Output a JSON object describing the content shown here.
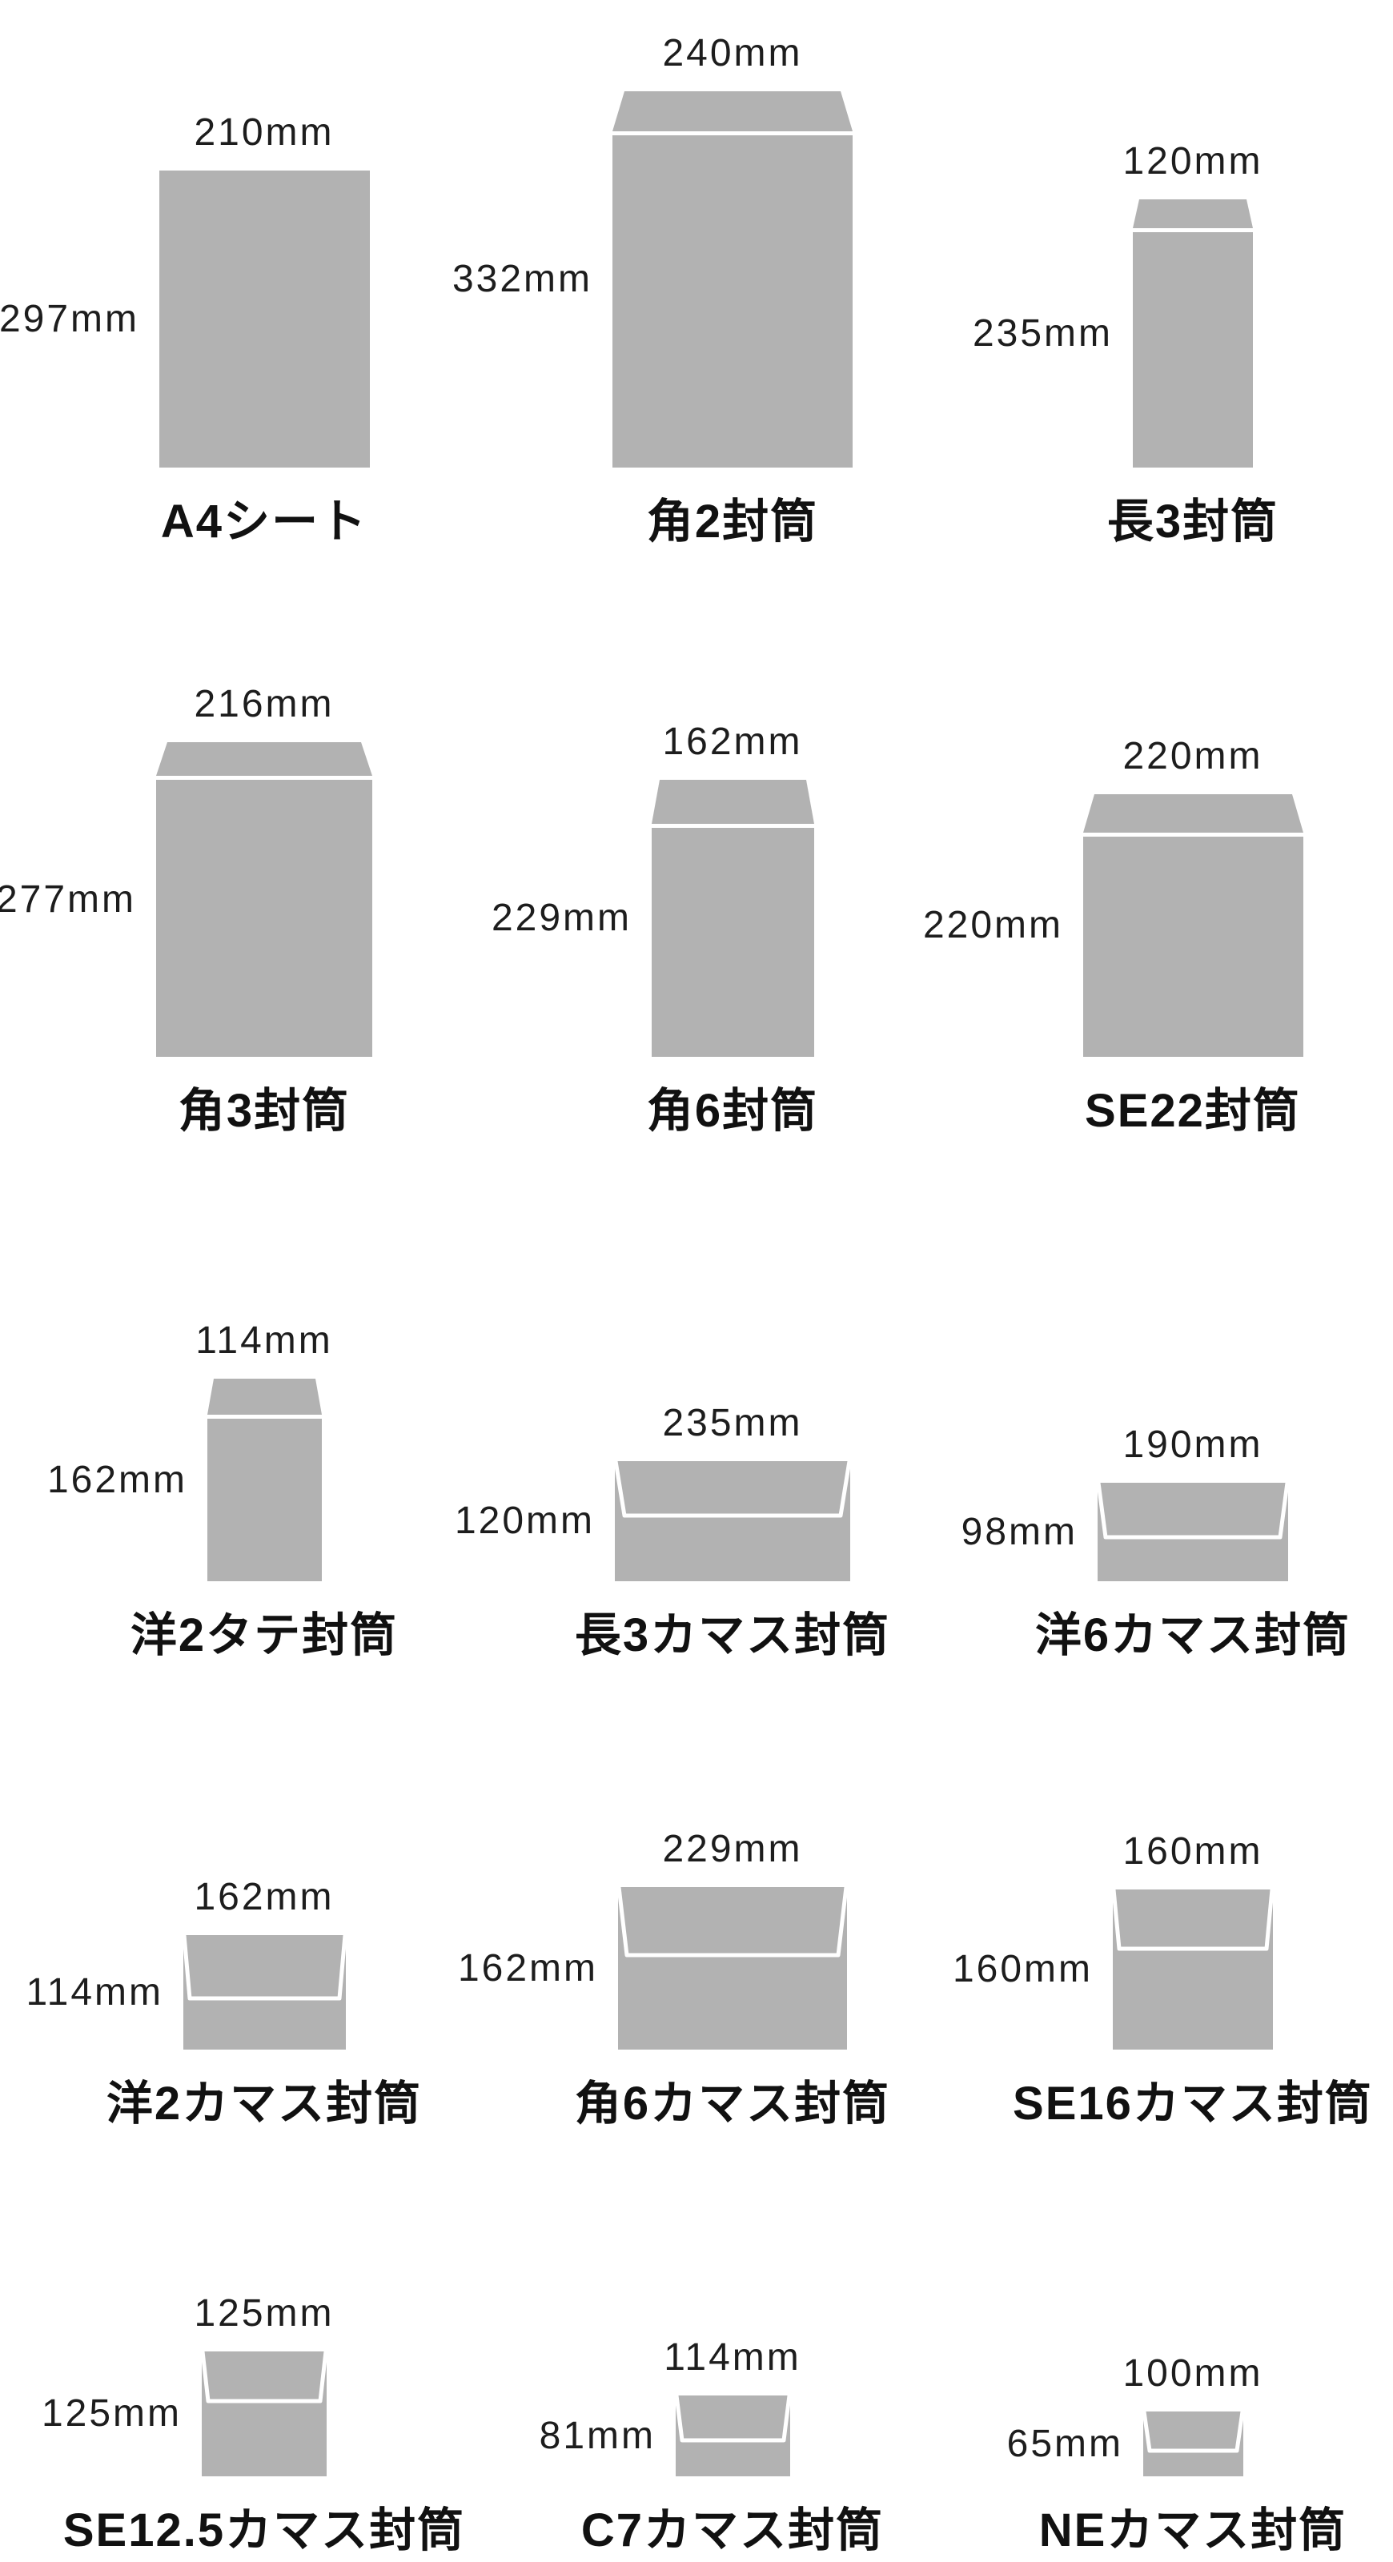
{
  "diagram": {
    "description": "envelope-and-sheet-size-reference",
    "unit_suffix": "mm"
  },
  "colors": {
    "background": "#ffffff",
    "shape_fill": "#b2b2b2",
    "separator_line": "#ffffff",
    "dimension_text": "#1d1d1d",
    "name_text": "#111111"
  },
  "items": [
    {
      "name": "A4シート",
      "width_label": "210mm",
      "height_label": "297mm",
      "width_mm": 210,
      "height_mm": 297,
      "shape": "sheet"
    },
    {
      "name": "角2封筒",
      "width_label": "240mm",
      "height_label": "332mm",
      "width_mm": 240,
      "height_mm": 332,
      "shape": "flap-top"
    },
    {
      "name": "長3封筒",
      "width_label": "120mm",
      "height_label": "235mm",
      "width_mm": 120,
      "height_mm": 235,
      "shape": "flap-top"
    },
    {
      "name": "角3封筒",
      "width_label": "216mm",
      "height_label": "277mm",
      "width_mm": 216,
      "height_mm": 277,
      "shape": "flap-top"
    },
    {
      "name": "角6封筒",
      "width_label": "162mm",
      "height_label": "229mm",
      "width_mm": 162,
      "height_mm": 229,
      "shape": "flap-top"
    },
    {
      "name": "SE22封筒",
      "width_label": "220mm",
      "height_label": "220mm",
      "width_mm": 220,
      "height_mm": 220,
      "shape": "flap-top"
    },
    {
      "name": "洋2タテ封筒",
      "width_label": "114mm",
      "height_label": "162mm",
      "width_mm": 114,
      "height_mm": 162,
      "shape": "flap-top"
    },
    {
      "name": "長3カマス封筒",
      "width_label": "235mm",
      "height_label": "120mm",
      "width_mm": 235,
      "height_mm": 120,
      "shape": "kamasu"
    },
    {
      "name": "洋6カマス封筒",
      "width_label": "190mm",
      "height_label": "98mm",
      "width_mm": 190,
      "height_mm": 98,
      "shape": "kamasu"
    },
    {
      "name": "洋2カマス封筒",
      "width_label": "162mm",
      "height_label": "114mm",
      "width_mm": 162,
      "height_mm": 114,
      "shape": "kamasu"
    },
    {
      "name": "角6カマス封筒",
      "width_label": "229mm",
      "height_label": "162mm",
      "width_mm": 229,
      "height_mm": 162,
      "shape": "kamasu"
    },
    {
      "name": "SE16カマス封筒",
      "width_label": "160mm",
      "height_label": "160mm",
      "width_mm": 160,
      "height_mm": 160,
      "shape": "kamasu"
    },
    {
      "name": "SE12.5カマス封筒",
      "width_label": "125mm",
      "height_label": "125mm",
      "width_mm": 125,
      "height_mm": 125,
      "shape": "kamasu"
    },
    {
      "name": "C7カマス封筒",
      "width_label": "114mm",
      "height_label": "81mm",
      "width_mm": 114,
      "height_mm": 81,
      "shape": "kamasu"
    },
    {
      "name": "NEカマス封筒",
      "width_label": "100mm",
      "height_label": "65mm",
      "width_mm": 100,
      "height_mm": 65,
      "shape": "kamasu"
    }
  ]
}
